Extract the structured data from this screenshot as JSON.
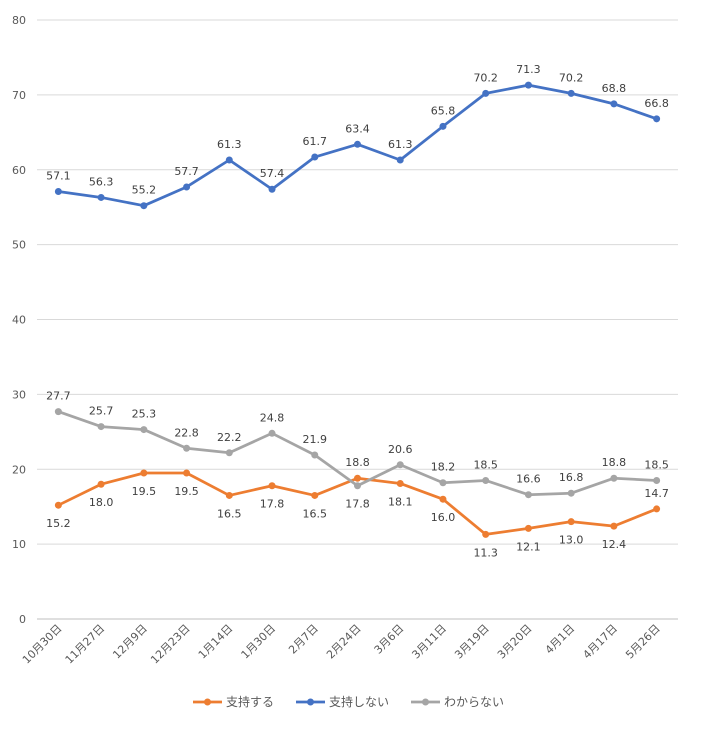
{
  "chart_data": {
    "type": "line",
    "categories": [
      "10月30日",
      "11月27日",
      "12月9日",
      "12月23日",
      "1月14日",
      "1月30日",
      "2月7日",
      "2月24日",
      "3月6日",
      "3月11日",
      "3月19日",
      "3月20日",
      "4月1日",
      "4月17日",
      "5月26日"
    ],
    "ylim": [
      0,
      80
    ],
    "yticks": [
      0,
      10,
      20,
      30,
      40,
      50,
      60,
      70,
      80
    ],
    "grid": true,
    "legend_position": "bottom",
    "series": [
      {
        "name": "支持する",
        "color": "#ED7D31",
        "values": [
          15.2,
          18.0,
          19.5,
          19.5,
          16.5,
          17.8,
          16.5,
          18.8,
          18.1,
          16.0,
          11.3,
          12.1,
          13.0,
          12.4,
          14.7
        ],
        "label_positions": [
          "below",
          "below",
          "below",
          "below",
          "below",
          "below",
          "below",
          "above",
          "below",
          "below",
          "below",
          "below",
          "below",
          "below",
          "above"
        ]
      },
      {
        "name": "支持しない",
        "color": "#4472C4",
        "values": [
          57.1,
          56.3,
          55.2,
          57.7,
          61.3,
          57.4,
          61.7,
          63.4,
          61.3,
          65.8,
          70.2,
          71.3,
          70.2,
          68.8,
          66.8
        ],
        "label_positions": [
          "above",
          "above",
          "above",
          "above",
          "above",
          "above",
          "above",
          "above",
          "above",
          "above",
          "above",
          "above",
          "above",
          "above",
          "above"
        ]
      },
      {
        "name": "わからない",
        "color": "#A5A5A5",
        "values": [
          27.7,
          25.7,
          25.3,
          22.8,
          22.2,
          24.8,
          21.9,
          17.8,
          20.6,
          18.2,
          18.5,
          16.6,
          16.8,
          18.8,
          18.5
        ],
        "label_positions": [
          "above",
          "above",
          "above",
          "above",
          "above",
          "above",
          "above",
          "below",
          "above",
          "above",
          "above",
          "above",
          "above",
          "above",
          "above"
        ]
      }
    ]
  }
}
